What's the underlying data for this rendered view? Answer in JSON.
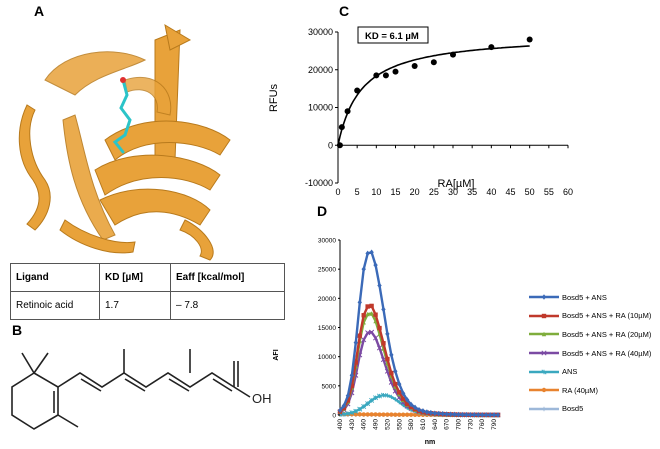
{
  "panels": {
    "a": "A",
    "b": "B",
    "c": "C",
    "d": "D"
  },
  "colors": {
    "ribbon": "#e8a23a",
    "ribbon_dark": "#b87a1c",
    "ligand": "#2bc4c8"
  },
  "table": {
    "headers": [
      "Ligand",
      "KD [µM]",
      "Eaff [kcal/mol]"
    ],
    "rows": [
      [
        "Retinoic acid",
        "1.7",
        "– 7.8"
      ]
    ]
  },
  "structure": {
    "label": "OH"
  },
  "chart_data": [
    {
      "type": "scatter",
      "title": "",
      "annotation": "KD = 6.1 µM",
      "xlabel": "RA[µM]",
      "ylabel": "RFUs",
      "xlim": [
        0,
        60
      ],
      "ylim": [
        -10000,
        30000
      ],
      "xticks": [
        0,
        5,
        10,
        15,
        20,
        25,
        30,
        35,
        40,
        45,
        50,
        55,
        60
      ],
      "yticks": [
        -10000,
        0,
        10000,
        20000,
        30000
      ],
      "points": {
        "x": [
          0.5,
          1,
          2.5,
          5,
          10,
          12.5,
          15,
          20,
          25,
          30,
          40,
          50
        ],
        "y": [
          0,
          4800,
          9000,
          14500,
          18500,
          18500,
          19500,
          21000,
          22000,
          24000,
          26000,
          28000
        ]
      },
      "fit": {
        "model": "Bmax*x/(KD+x)",
        "Bmax": 29500,
        "KD": 6.1
      }
    },
    {
      "type": "line",
      "title": "",
      "xlabel": "nm",
      "ylabel": "AFI",
      "ylim": [
        0,
        30000
      ],
      "yticks": [
        0,
        5000,
        10000,
        15000,
        20000,
        25000,
        30000
      ],
      "x": [
        400,
        410,
        420,
        430,
        440,
        450,
        460,
        470,
        480,
        490,
        500,
        510,
        520,
        530,
        540,
        550,
        560,
        570,
        580,
        590,
        600,
        610,
        620,
        630,
        640,
        650,
        660,
        670,
        680,
        690,
        700,
        710,
        720,
        730,
        740,
        750,
        760,
        770,
        780,
        790,
        800
      ],
      "xticks": [
        400,
        430,
        460,
        490,
        520,
        550,
        580,
        610,
        640,
        670,
        700,
        730,
        760,
        790
      ],
      "series": [
        {
          "name": "Bosd5 + ANS",
          "color": "#3b6ab8",
          "marker": "diamond",
          "values": [
            800,
            1600,
            3300,
            6800,
            12400,
            19300,
            25000,
            27700,
            27900,
            25700,
            22200,
            18100,
            13900,
            10300,
            7500,
            5300,
            3700,
            2600,
            1800,
            1300,
            900,
            700,
            500,
            400,
            300,
            250,
            200,
            150,
            120,
            100,
            80,
            60,
            50,
            40,
            30,
            30,
            20,
            20,
            20,
            10,
            10
          ]
        },
        {
          "name": "Bosd5 + ANS + RA (10µM)",
          "color": "#c0392b",
          "marker": "square",
          "values": [
            600,
            1200,
            2500,
            5000,
            9000,
            13600,
            17100,
            18600,
            18700,
            17200,
            14900,
            12300,
            9600,
            7200,
            5300,
            3900,
            2800,
            1900,
            1400,
            1000,
            700,
            500,
            400,
            300,
            250,
            200,
            150,
            120,
            100,
            80,
            60,
            50,
            40,
            30,
            30,
            20,
            20,
            20,
            10,
            10,
            10
          ]
        },
        {
          "name": "Bosd5 + ANS + RA (20µM)",
          "color": "#7fad3c",
          "marker": "triangle",
          "values": [
            550,
            1100,
            2300,
            4700,
            8400,
            12700,
            15900,
            17300,
            17400,
            16100,
            13900,
            11400,
            8900,
            6700,
            4900,
            3600,
            2600,
            1800,
            1300,
            900,
            650,
            480,
            350,
            270,
            220,
            170,
            130,
            100,
            80,
            60,
            50,
            40,
            30,
            30,
            20,
            20,
            20,
            10,
            10,
            10,
            10
          ]
        },
        {
          "name": "Bosd5 + ANS + RA (40µM)",
          "color": "#7b4aa3",
          "marker": "x",
          "values": [
            450,
            900,
            1900,
            3800,
            6800,
            10300,
            12900,
            14100,
            14200,
            13200,
            11500,
            9500,
            7500,
            5600,
            4100,
            3000,
            2200,
            1500,
            1100,
            800,
            550,
            400,
            300,
            230,
            180,
            140,
            110,
            90,
            70,
            50,
            40,
            30,
            30,
            20,
            20,
            20,
            10,
            10,
            10,
            10,
            10
          ]
        },
        {
          "name": "ANS",
          "color": "#3aa8bf",
          "marker": "star",
          "values": [
            100,
            150,
            250,
            400,
            650,
            1000,
            1450,
            1950,
            2500,
            2950,
            3250,
            3400,
            3350,
            3100,
            2700,
            2200,
            1700,
            1250,
            900,
            650,
            450,
            320,
            230,
            170,
            130,
            100,
            80,
            60,
            50,
            40,
            30,
            30,
            20,
            20,
            20,
            10,
            10,
            10,
            10,
            10,
            10
          ]
        },
        {
          "name": "RA (40µM)",
          "color": "#e8832f",
          "marker": "circle",
          "values": [
            150,
            150,
            140,
            130,
            120,
            110,
            100,
            100,
            90,
            90,
            80,
            80,
            70,
            70,
            60,
            60,
            50,
            50,
            50,
            40,
            40,
            40,
            30,
            30,
            30,
            30,
            20,
            20,
            20,
            20,
            20,
            20,
            20,
            10,
            10,
            10,
            10,
            10,
            10,
            10,
            10
          ]
        },
        {
          "name": "Bosd5",
          "color": "#9db8d9",
          "marker": "plus",
          "values": [
            60,
            60,
            60,
            60,
            60,
            60,
            60,
            60,
            60,
            60,
            60,
            60,
            60,
            60,
            60,
            60,
            60,
            60,
            60,
            60,
            60,
            60,
            60,
            60,
            60,
            60,
            60,
            60,
            60,
            60,
            60,
            60,
            60,
            60,
            60,
            60,
            60,
            60,
            60,
            60,
            60
          ]
        }
      ]
    }
  ]
}
